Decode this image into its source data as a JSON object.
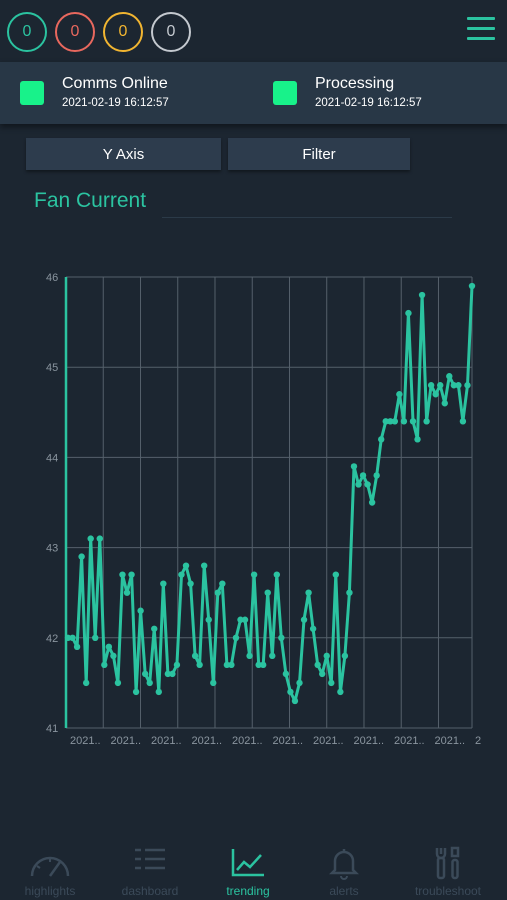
{
  "counters": [
    {
      "value": "0",
      "color": "#2bc3a0"
    },
    {
      "value": "0",
      "color": "#e8685e"
    },
    {
      "value": "0",
      "color": "#f1b531"
    },
    {
      "value": "0",
      "color": "#c4c9cf"
    }
  ],
  "status": [
    {
      "label": "Comms Online",
      "time": "2021-02-19 16:12:57"
    },
    {
      "label": "Processing",
      "time": "2021-02-19 16:12:57"
    }
  ],
  "buttons": {
    "y_axis": "Y Axis",
    "filter": "Filter"
  },
  "chart_title": "Fan Current",
  "nav": [
    {
      "label": "highlights",
      "icon": "gauge-icon"
    },
    {
      "label": "dashboard",
      "icon": "list-icon"
    },
    {
      "label": "trending",
      "icon": "line-chart-icon"
    },
    {
      "label": "alerts",
      "icon": "bell-icon"
    },
    {
      "label": "troubleshoot",
      "icon": "tools-icon"
    }
  ],
  "chart_data": {
    "type": "line",
    "title": "Fan Current",
    "ylim": [
      41,
      46
    ],
    "yticks": [
      "41",
      "42",
      "43",
      "44",
      "45",
      "46"
    ],
    "xticks": [
      "2021..",
      "2021..",
      "2021..",
      "2021..",
      "2021..",
      "2021..",
      "2021..",
      "2021..",
      "2021..",
      "2021..",
      "2"
    ],
    "grid": true,
    "color": "#2bc3a0",
    "values": [
      42.0,
      42.0,
      41.9,
      42.9,
      41.5,
      43.1,
      42.0,
      43.1,
      41.7,
      41.9,
      41.8,
      41.5,
      42.7,
      42.5,
      42.7,
      41.4,
      42.3,
      41.6,
      41.5,
      42.1,
      41.4,
      42.6,
      41.6,
      41.6,
      41.7,
      42.7,
      42.8,
      42.6,
      41.8,
      41.7,
      42.8,
      42.2,
      41.5,
      42.5,
      42.6,
      41.7,
      41.7,
      42.0,
      42.2,
      42.2,
      41.8,
      42.7,
      41.7,
      41.7,
      42.5,
      41.8,
      42.7,
      42.0,
      41.6,
      41.4,
      41.3,
      41.5,
      42.2,
      42.5,
      42.1,
      41.7,
      41.6,
      41.8,
      41.5,
      42.7,
      41.4,
      41.8,
      42.5,
      43.9,
      43.7,
      43.8,
      43.7,
      43.5,
      43.8,
      44.2,
      44.4,
      44.4,
      44.4,
      44.7,
      44.4,
      45.6,
      44.4,
      44.2,
      45.8,
      44.4,
      44.8,
      44.7,
      44.8,
      44.6,
      44.9,
      44.8,
      44.8,
      44.4,
      44.8,
      45.9
    ]
  }
}
